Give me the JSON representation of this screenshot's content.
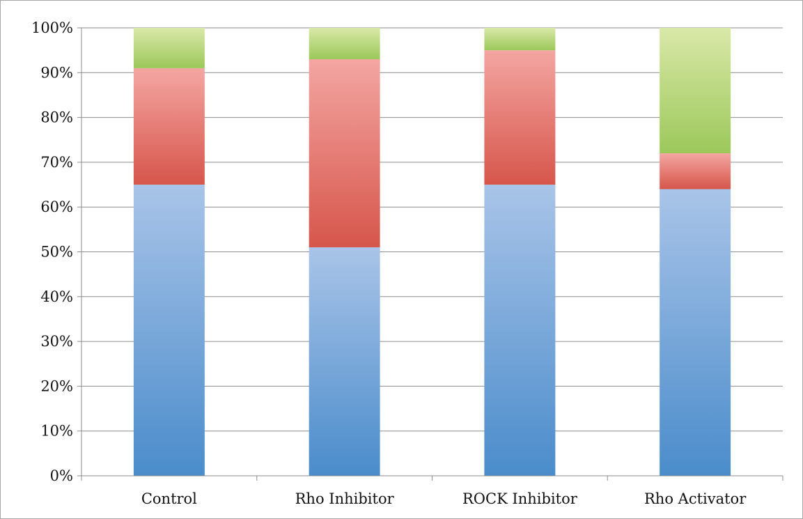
{
  "chart_data": {
    "type": "bar",
    "stacked": true,
    "title": "",
    "xlabel": "",
    "ylabel": "",
    "categories": [
      "Control",
      "Rho Inhibitor",
      "ROCK Inhibitor",
      "Rho Activator"
    ],
    "ylim": [
      0,
      100
    ],
    "yticks": [
      "0%",
      "10%",
      "20%",
      "30%",
      "40%",
      "50%",
      "60%",
      "70%",
      "80%",
      "90%",
      "100%"
    ],
    "grid": true,
    "legend": "none",
    "series": [
      {
        "values": [
          65,
          51,
          65,
          64
        ],
        "color_top": "#a9c4e8",
        "color_bottom": "#4a8ccb"
      },
      {
        "values": [
          26,
          42,
          30,
          8
        ],
        "color_top": "#f4a6a2",
        "color_bottom": "#d6564b"
      },
      {
        "values": [
          9,
          7,
          5,
          28
        ],
        "color_top": "#d9e8a8",
        "color_bottom": "#9cc85a"
      }
    ]
  }
}
